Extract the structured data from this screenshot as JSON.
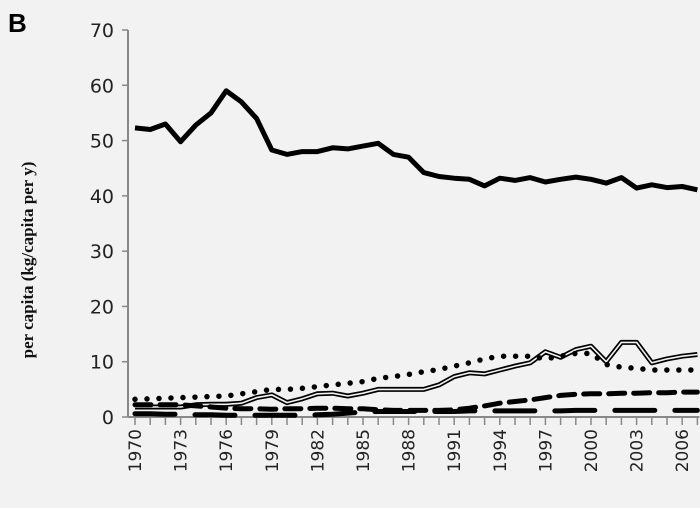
{
  "panel_label": "B",
  "chart_data": {
    "type": "line",
    "title": "",
    "xlabel": "",
    "ylabel": "per capita (kg/capita per y)",
    "ylim": [
      0,
      70
    ],
    "yticks": [
      0,
      10,
      20,
      30,
      40,
      50,
      60,
      70
    ],
    "xlim": [
      1970,
      2007
    ],
    "xticks": [
      1970,
      1973,
      1976,
      1979,
      1982,
      1985,
      1988,
      1991,
      1994,
      1997,
      2000,
      2003,
      2006
    ],
    "grid": false,
    "x": [
      1970,
      1971,
      1972,
      1973,
      1974,
      1975,
      1976,
      1977,
      1978,
      1979,
      1980,
      1981,
      1982,
      1983,
      1984,
      1985,
      1986,
      1987,
      1988,
      1989,
      1990,
      1991,
      1992,
      1993,
      1994,
      1995,
      1996,
      1997,
      1998,
      1999,
      2000,
      2001,
      2002,
      2003,
      2004,
      2005,
      2006,
      2007
    ],
    "series": [
      {
        "style": "thick-solid",
        "values": [
          52.3,
          52,
          53,
          49.8,
          52.8,
          55,
          59,
          57,
          54,
          48.3,
          47.5,
          48,
          48,
          48.7,
          48.5,
          49,
          49.5,
          47.5,
          47,
          44.2,
          43.5,
          43.2,
          43,
          41.8,
          43.2,
          42.8,
          43.3,
          42.5,
          43,
          43.4,
          43,
          42.3,
          43.3,
          41.4,
          42,
          41.5,
          41.7,
          41.1
        ]
      },
      {
        "style": "double-line",
        "values": [
          1.8,
          1.8,
          1.8,
          1.8,
          2.2,
          2.3,
          2.3,
          2.5,
          3.5,
          4,
          2.6,
          3.3,
          4.2,
          4.3,
          3.8,
          4.3,
          5,
          5,
          5,
          5,
          5.8,
          7.3,
          8,
          7.8,
          8.5,
          9.2,
          9.8,
          11.8,
          10.8,
          12.2,
          12.8,
          10,
          13.5,
          13.5,
          9.8,
          10.5,
          11,
          11.3
        ]
      },
      {
        "style": "dotted",
        "values": [
          3.2,
          3.3,
          3.4,
          3.5,
          3.6,
          3.7,
          3.8,
          4.2,
          4.6,
          5,
          5,
          5.2,
          5.5,
          5.8,
          6.1,
          6.4,
          7,
          7.3,
          7.7,
          8.2,
          8.6,
          9.2,
          9.8,
          10.5,
          11,
          11,
          11,
          10.5,
          11,
          11.5,
          11.5,
          9.5,
          9,
          8.8,
          8.5,
          8.5,
          8.5,
          8.5
        ]
      },
      {
        "style": "short-dash",
        "values": [
          2.2,
          2.2,
          2.2,
          2.2,
          2,
          1.8,
          1.6,
          1.5,
          1.5,
          1.4,
          1.5,
          1.5,
          1.6,
          1.6,
          1.5,
          1.5,
          1.3,
          1.2,
          1.2,
          1.2,
          1.2,
          1.3,
          1.6,
          2,
          2.5,
          2.8,
          3.1,
          3.5,
          3.9,
          4.1,
          4.2,
          4.2,
          4.3,
          4.3,
          4.4,
          4.4,
          4.5,
          4.5
        ]
      },
      {
        "style": "long-dash",
        "values": [
          0.6,
          0.6,
          0.5,
          0.5,
          0.4,
          0.4,
          0.3,
          0.3,
          0.3,
          0.3,
          0.3,
          0.3,
          0.4,
          0.5,
          0.7,
          0.9,
          1,
          1,
          1,
          1,
          1,
          1,
          1.1,
          1.1,
          1.1,
          1.1,
          1.1,
          1.1,
          1.1,
          1.2,
          1.2,
          1.2,
          1.2,
          1.2,
          1.2,
          1.2,
          1.2,
          1.2
        ]
      }
    ]
  }
}
